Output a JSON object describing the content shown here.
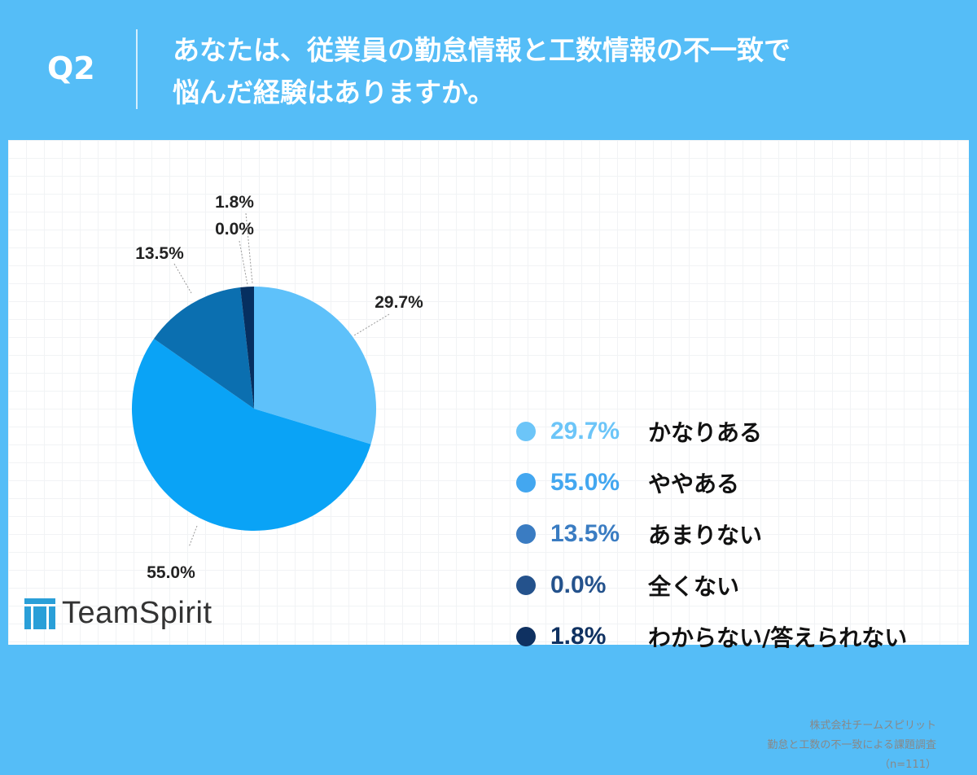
{
  "header": {
    "q_label": "Q2",
    "title_line1": "あなたは、従業員の勤怠情報と工数情報の不一致で",
    "title_line2": "悩んだ経験はありますか。"
  },
  "chart_data": {
    "type": "pie",
    "title": "",
    "slices": [
      {
        "label": "かなりある",
        "value": 29.7,
        "display": "29.7%",
        "color": "#5ec1fa"
      },
      {
        "label": "ややある",
        "value": 55.0,
        "display": "55.0%",
        "color": "#0aa3f6"
      },
      {
        "label": "あまりない",
        "value": 13.5,
        "display": "13.5%",
        "color": "#0b6fb0"
      },
      {
        "label": "全くない",
        "value": 0.0,
        "display": "0.0%",
        "color": "#0c4a88"
      },
      {
        "label": "わからない/答えられない",
        "value": 1.8,
        "display": "1.8%",
        "color": "#062f60"
      }
    ],
    "legend_placement": "right"
  },
  "legend_colors": {
    "かなりある": "#6cc5f8",
    "ややある": "#43a7f0",
    "あまりない": "#3a7cc2",
    "全くない": "#24528c",
    "わからない/答えられない": "#0f3161"
  },
  "branding": {
    "logo_text": "TeamSpirit",
    "logo_icon": "teamspirit-logo-icon"
  },
  "source": {
    "line1": "株式会社チームスピリット",
    "line2": "勤怠と工数の不一致による課題調査",
    "line3": "（n=111）"
  }
}
